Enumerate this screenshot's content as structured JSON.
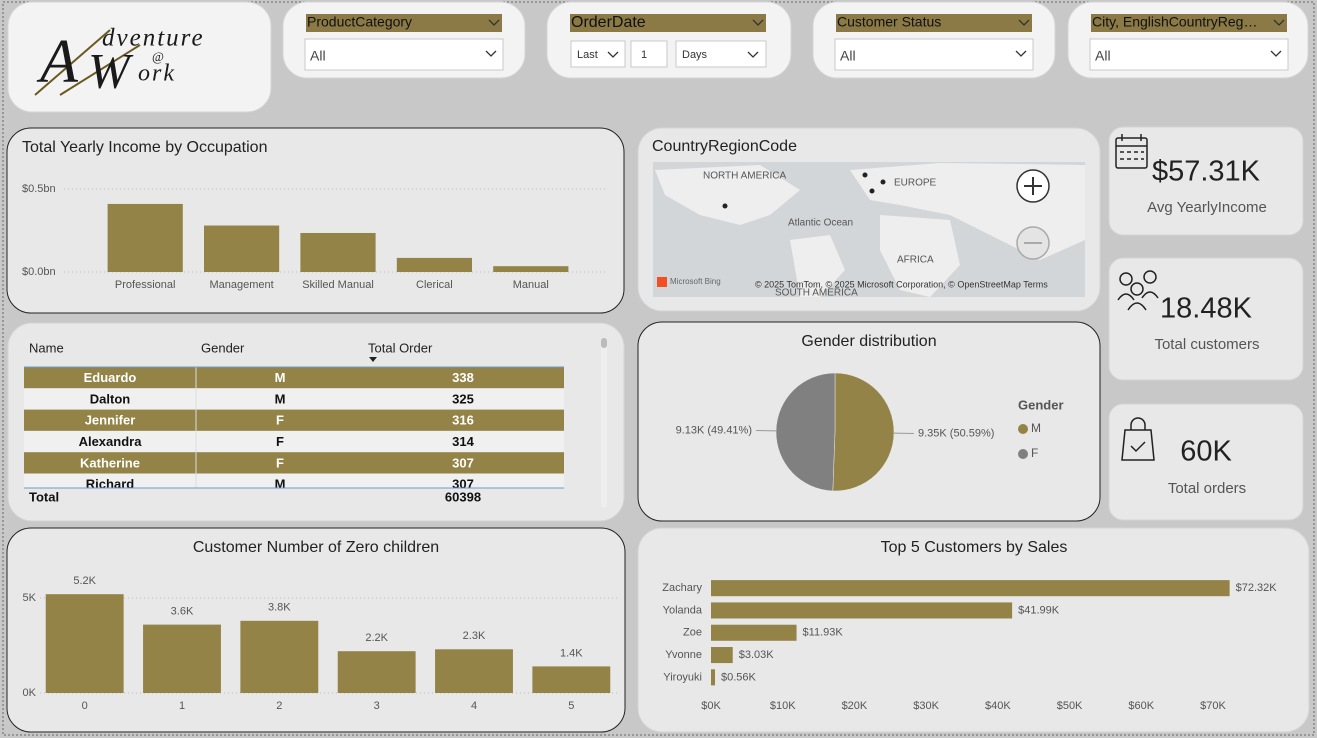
{
  "logo": {
    "initial1": "A",
    "line1": "dventure",
    "at": "@",
    "initial2": "W",
    "line2": "ork"
  },
  "filters": [
    {
      "title": "ProductCategory",
      "value": "All"
    },
    {
      "title": "OrderDate",
      "period": "Last",
      "count": 1,
      "unit": "Days"
    },
    {
      "title": "Customer Status",
      "value": "All"
    },
    {
      "title": "City, EnglishCountryReg…",
      "value": "All"
    }
  ],
  "map": {
    "title": "CountryRegionCode",
    "labels": [
      "NORTH AMERICA",
      "EUROPE",
      "Atlantic Ocean",
      "AFRICA",
      "SOUTH AMERICA"
    ],
    "attribution": "Microsoft Bing",
    "copyright": "© 2025 TomTom, © 2025 Microsoft Corporation, © OpenStreetMap Terms"
  },
  "kpis": [
    {
      "value": "$57.31K",
      "label": "Avg YearlyIncome"
    },
    {
      "value": "18.48K",
      "label": "Total customers"
    },
    {
      "value": "60K",
      "label": "Total orders"
    }
  ],
  "table": {
    "columns": [
      "Name",
      "Gender",
      "Total Order"
    ],
    "rows": [
      [
        "Eduardo",
        "M",
        338
      ],
      [
        "Dalton",
        "M",
        325
      ],
      [
        "Jennifer",
        "F",
        316
      ],
      [
        "Alexandra",
        "F",
        314
      ],
      [
        "Katherine",
        "F",
        307
      ],
      [
        "Richard",
        "M",
        307
      ]
    ],
    "total": [
      "Total",
      60398
    ]
  },
  "chart_data": [
    {
      "type": "bar",
      "title": "Total Yearly Income by Occupation",
      "categories": [
        "Professional",
        "Management",
        "Skilled Manual",
        "Clerical",
        "Manual"
      ],
      "values": [
        0.41,
        0.28,
        0.235,
        0.085,
        0.035
      ],
      "color": "#938346",
      "ylim": [
        0,
        0.5
      ],
      "yticks": [
        {
          "value": 0,
          "label": "$0.0bn"
        },
        {
          "value": 0.5,
          "label": "$0.5bn"
        }
      ],
      "grid": true
    },
    {
      "type": "pie",
      "title": "Gender distribution",
      "legend_title": "Gender",
      "categories": [
        "M",
        "F"
      ],
      "values": [
        9350,
        9130
      ],
      "value_labels": [
        "9.35K (50.59%)",
        "9.13K (49.41%)"
      ],
      "colors": [
        "#938346",
        "#808080"
      ]
    },
    {
      "type": "bar",
      "title": "Customer Number of Zero children",
      "categories": [
        "0",
        "1",
        "2",
        "3",
        "4",
        "5"
      ],
      "values": [
        5200,
        3600,
        3800,
        2200,
        2300,
        1400
      ],
      "value_labels": [
        "5.2K",
        "3.6K",
        "3.8K",
        "2.2K",
        "2.3K",
        "1.4K"
      ],
      "color": "#938346",
      "ylim": [
        0,
        6000
      ],
      "yticks": [
        {
          "value": 0,
          "label": "0K"
        },
        {
          "value": 5000,
          "label": "5K"
        }
      ],
      "grid": true
    },
    {
      "type": "bar",
      "horizontal": true,
      "title": "Top 5 Customers by Sales",
      "categories": [
        "Zachary",
        "Yolanda",
        "Zoe",
        "Yvonne",
        "Yiroyuki"
      ],
      "values": [
        72320,
        41990,
        11930,
        3030,
        560
      ],
      "value_labels": [
        "$72.32K",
        "$41.99K",
        "$11.93K",
        "$3.03K",
        "$0.56K"
      ],
      "color": "#938346",
      "xlim": [
        0,
        80000
      ],
      "xticks": [
        {
          "value": 0,
          "label": "$0K"
        },
        {
          "value": 10000,
          "label": "$10K"
        },
        {
          "value": 20000,
          "label": "$20K"
        },
        {
          "value": 30000,
          "label": "$30K"
        },
        {
          "value": 40000,
          "label": "$40K"
        },
        {
          "value": 50000,
          "label": "$50K"
        },
        {
          "value": 60000,
          "label": "$60K"
        },
        {
          "value": 70000,
          "label": "$70K"
        }
      ],
      "grid": false
    }
  ]
}
